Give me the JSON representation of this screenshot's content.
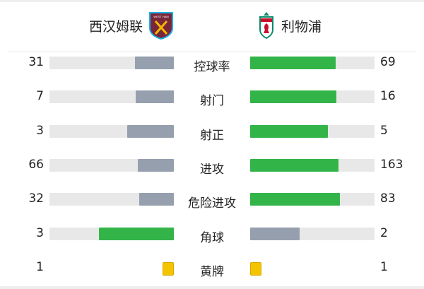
{
  "colors": {
    "winner": "#33b449",
    "loser": "#959fae",
    "track": "#e8e8e8",
    "card": "#f5c400"
  },
  "home": {
    "name": "西汉姆联",
    "logo": "west-ham-crest",
    "logo_text": "WEST HAM UNITED"
  },
  "away": {
    "name": "利物浦",
    "logo": "liverpool-crest",
    "logo_text": "LIVERPOOL"
  },
  "stats": [
    {
      "label": "控球率",
      "home": 31,
      "away": 69
    },
    {
      "label": "射门",
      "home": 7,
      "away": 16
    },
    {
      "label": "射正",
      "home": 3,
      "away": 5
    },
    {
      "label": "进攻",
      "home": 66,
      "away": 163
    },
    {
      "label": "危险进攻",
      "home": 32,
      "away": 83
    },
    {
      "label": "角球",
      "home": 3,
      "away": 2
    }
  ],
  "cards": {
    "label": "黄牌",
    "home": 1,
    "away": 1,
    "icon": "yellow-card-icon"
  }
}
